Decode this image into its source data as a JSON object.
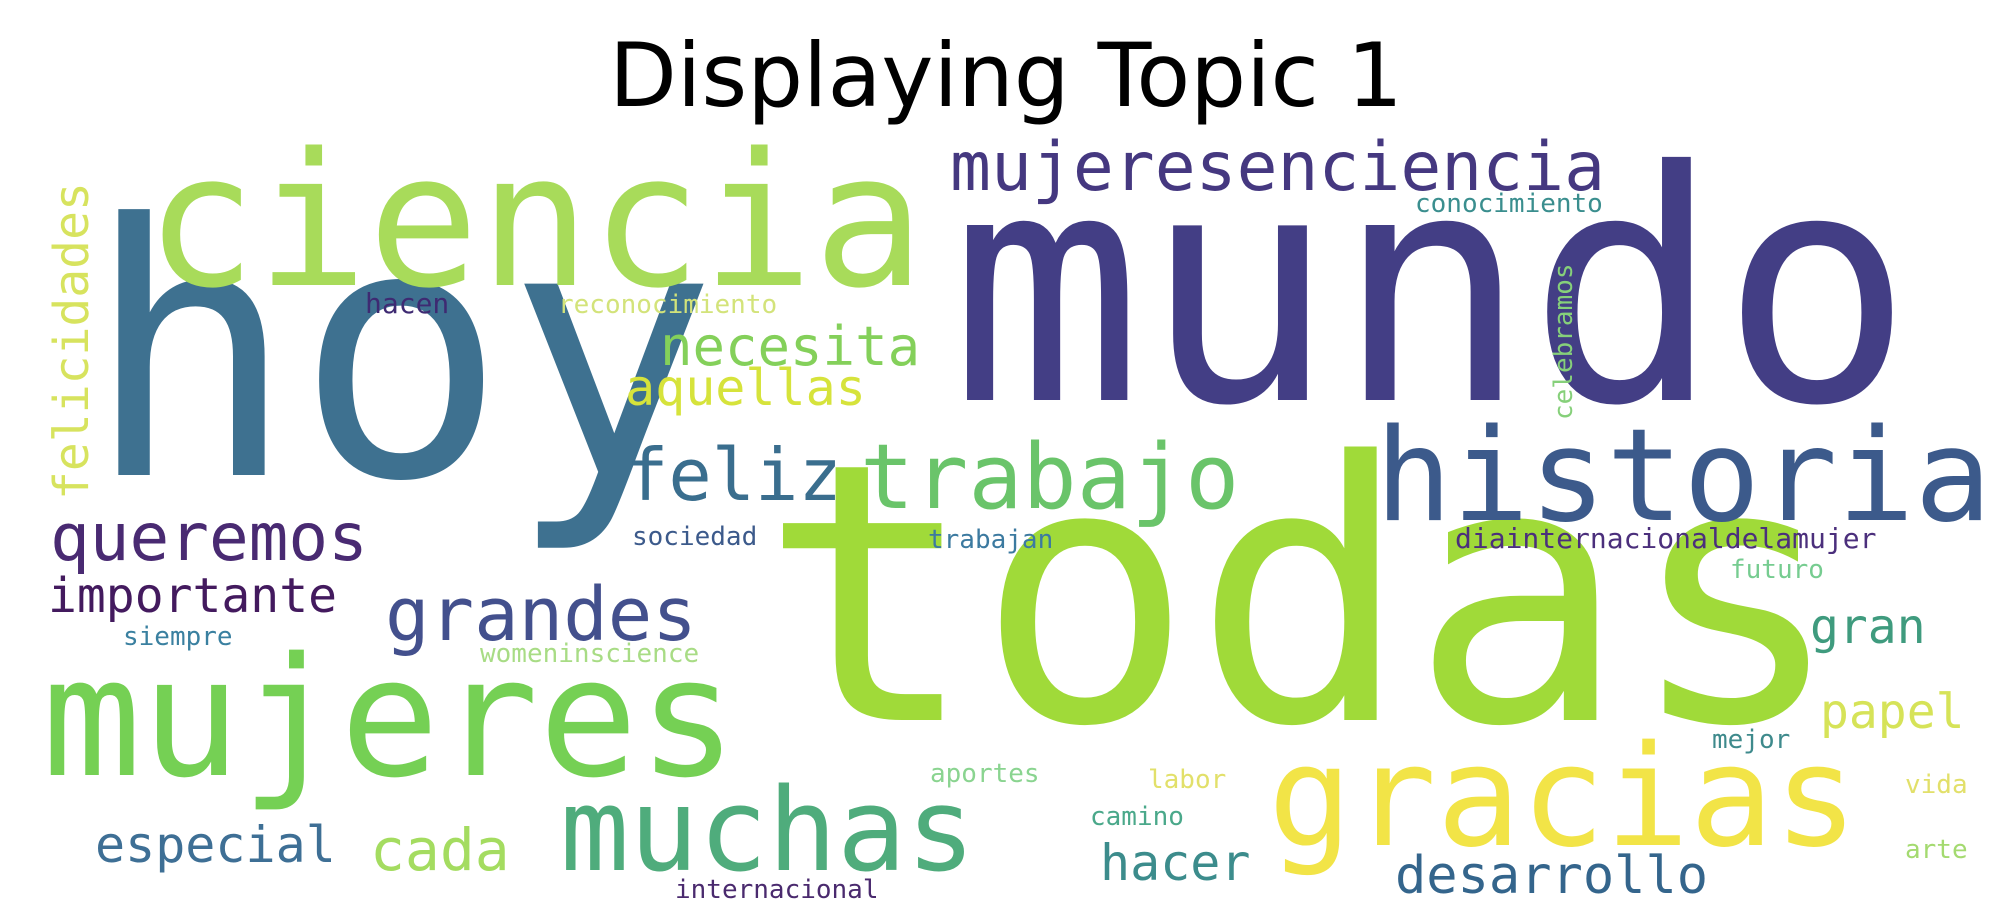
{
  "title": "Displaying Topic 1",
  "words": [
    {
      "text": "mundo",
      "color": "#433e85"
    },
    {
      "text": "todas",
      "color": "#a0da39"
    },
    {
      "text": "hoy",
      "color": "#3e7190"
    },
    {
      "text": "ciencia",
      "color": "#a8db5a"
    },
    {
      "text": "mujeres",
      "color": "#75d054"
    },
    {
      "text": "historia",
      "color": "#3c5a8b"
    },
    {
      "text": "gracias",
      "color": "#f2e447"
    },
    {
      "text": "muchas",
      "color": "#4fac7c"
    },
    {
      "text": "trabajo",
      "color": "#6ac46a"
    },
    {
      "text": "mujeresenciencia",
      "color": "#453880"
    },
    {
      "text": "grandes",
      "color": "#43508d"
    },
    {
      "text": "feliz",
      "color": "#3a6e8e"
    },
    {
      "text": "queremos",
      "color": "#492a72"
    },
    {
      "text": "necesita",
      "color": "#84d05a"
    },
    {
      "text": "aquellas",
      "color": "#d6e33b"
    },
    {
      "text": "felicidades",
      "color": "#d7e35e"
    },
    {
      "text": "importante",
      "color": "#431a5e"
    },
    {
      "text": "especial",
      "color": "#3e6f95"
    },
    {
      "text": "cada",
      "color": "#a4dc60"
    },
    {
      "text": "hacer",
      "color": "#3c8c8c"
    },
    {
      "text": "desarrollo",
      "color": "#34658c"
    },
    {
      "text": "papel",
      "color": "#d6e358"
    },
    {
      "text": "gran",
      "color": "#3f9b7e"
    },
    {
      "text": "diainternacionaldelamujer",
      "color": "#4b2f7c"
    },
    {
      "text": "conocimiento",
      "color": "#3a8e8e"
    },
    {
      "text": "celebramos",
      "color": "#86d07a"
    },
    {
      "text": "hacen",
      "color": "#3e2a72"
    },
    {
      "text": "reconocimiento",
      "color": "#d3e37a"
    },
    {
      "text": "sociedad",
      "color": "#3c5a8b"
    },
    {
      "text": "trabajan",
      "color": "#3c7aa0"
    },
    {
      "text": "futuro",
      "color": "#76cc90"
    },
    {
      "text": "siempre",
      "color": "#3a80a0"
    },
    {
      "text": "womeninscience",
      "color": "#a8dc85"
    },
    {
      "text": "mejor",
      "color": "#3e8a8c"
    },
    {
      "text": "aportes",
      "color": "#8ad490"
    },
    {
      "text": "labor",
      "color": "#e2e06a"
    },
    {
      "text": "vida",
      "color": "#e2e06a"
    },
    {
      "text": "camino",
      "color": "#4aa88a"
    },
    {
      "text": "arte",
      "color": "#a4da70"
    },
    {
      "text": "internacional",
      "color": "#4a2a6e"
    }
  ]
}
